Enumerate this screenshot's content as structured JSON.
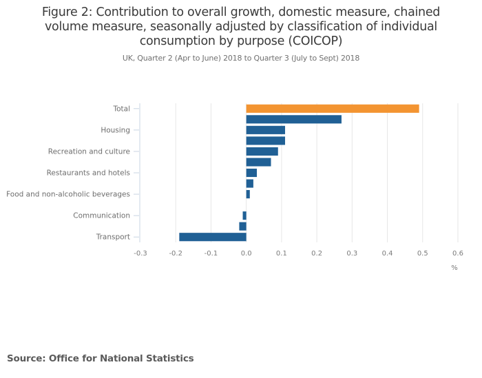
{
  "chart_data": {
    "type": "bar",
    "orientation": "horizontal",
    "title": "Figure 2: Contribution to overall growth, domestic measure, chained volume measure, seasonally adjusted by classification of individual consumption by purpose (COICOP)",
    "title_lines": [
      "Figure 2: Contribution to overall growth, domestic measure, chained",
      "volume measure, seasonally adjusted by classification of individual",
      "consumption by purpose (COICOP)"
    ],
    "subtitle": "UK, Quarter 2 (Apr to June) 2018 to Quarter 3 (July to Sept) 2018",
    "xlabel": "%",
    "ylabel": "",
    "xlim": [
      -0.3,
      0.6
    ],
    "xticks": [
      "-0.3",
      "-0.2",
      "-0.1",
      "0.0",
      "0.1",
      "0.2",
      "0.3",
      "0.4",
      "0.5",
      "0.6"
    ],
    "xtick_values": [
      -0.3,
      -0.2,
      -0.1,
      0.0,
      0.1,
      0.2,
      0.3,
      0.4,
      0.5,
      0.6
    ],
    "grid": true,
    "legend": "none",
    "categories": [
      "Total",
      "",
      "Housing",
      "",
      "Recreation and culture",
      "",
      "Restaurants and hotels",
      "",
      "Food and non-alcoholic beverages",
      "",
      "Communication",
      "",
      "Transport"
    ],
    "values": [
      0.49,
      0.27,
      0.11,
      0.11,
      0.09,
      0.07,
      0.03,
      0.02,
      0.01,
      0.0,
      -0.01,
      -0.02,
      -0.19
    ],
    "highlight_index": 0,
    "colors": {
      "highlight": "#f39431",
      "default": "#206095"
    }
  },
  "source": "Source: Office for National Statistics"
}
